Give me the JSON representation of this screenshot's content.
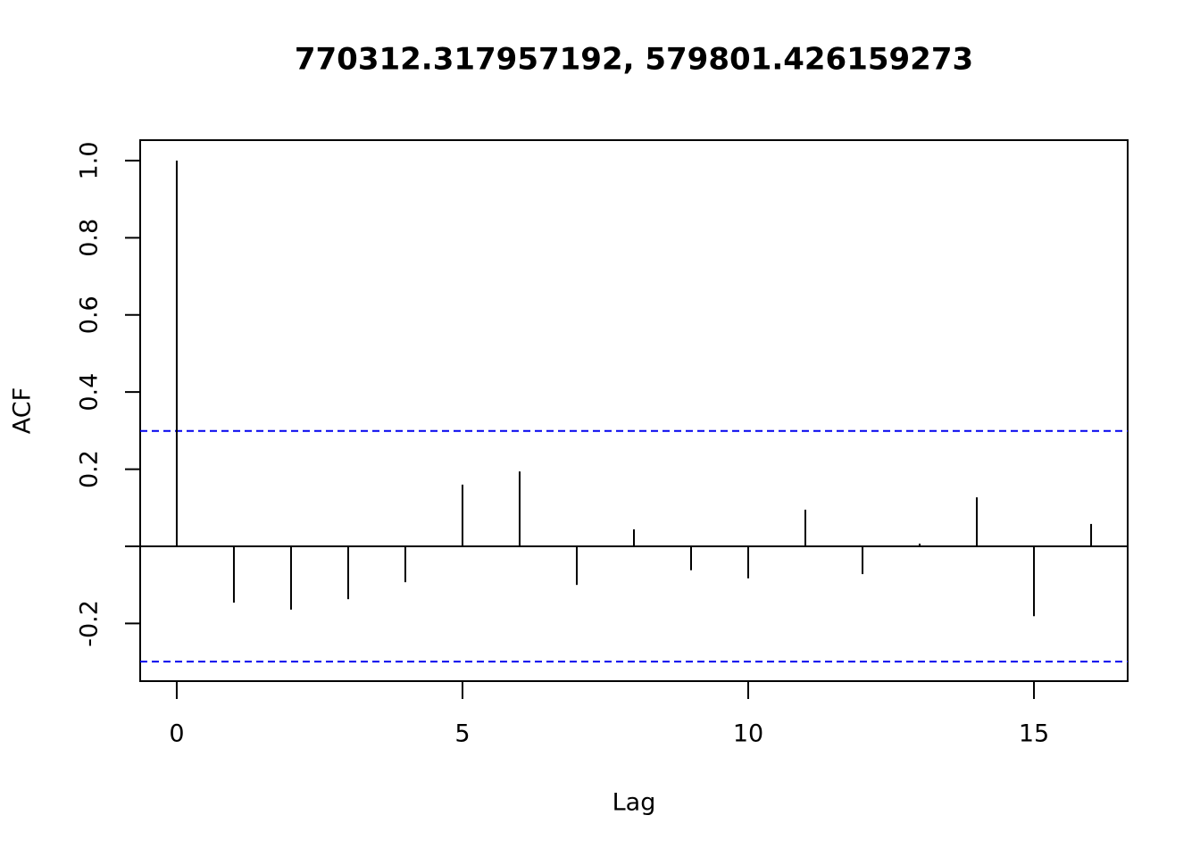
{
  "chart_data": {
    "type": "acf",
    "title": "770312.317957192, 579801.426159273",
    "x_label": "Lag",
    "y_label": "ACF",
    "x": [
      0,
      1,
      2,
      3,
      4,
      5,
      6,
      7,
      8,
      9,
      10,
      11,
      12,
      13,
      14,
      15,
      16
    ],
    "values": [
      1.0,
      -0.146,
      -0.164,
      -0.137,
      -0.093,
      0.16,
      0.194,
      -0.1,
      0.044,
      -0.062,
      -0.083,
      0.095,
      -0.072,
      0.007,
      0.127,
      -0.181,
      0.058
    ],
    "color": "#000000",
    "confidence_lines": [
      0.299,
      -0.299
    ],
    "confidence_color": "#0000ee",
    "xlim": [
      -0.64,
      16.64
    ],
    "ylim": [
      -0.3495,
      1.053
    ],
    "xticks": [
      0,
      5,
      10,
      15
    ],
    "yticks": [
      -0.2,
      {
        "value": 0,
        "label": null
      },
      0.2,
      0.4,
      0.6,
      0.8,
      {
        "value": 1,
        "label": "1.0"
      }
    ]
  }
}
